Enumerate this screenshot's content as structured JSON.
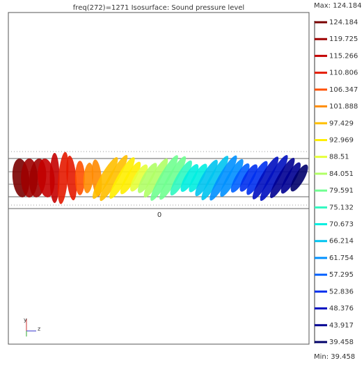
{
  "plot": {
    "title": "freq(272)=1271    Isosurface: Sound pressure level",
    "axis_tick": "0",
    "triad_y": "y",
    "triad_z": "z"
  },
  "colorbar": {
    "max_label": "Max: 124.184",
    "min_label": "Min: 39.458",
    "levels": [
      {
        "value": 124.184,
        "color": "#7a0000"
      },
      {
        "value": 119.725,
        "color": "#9e0000"
      },
      {
        "value": 115.266,
        "color": "#c40000"
      },
      {
        "value": 110.806,
        "color": "#e41a00"
      },
      {
        "value": 106.347,
        "color": "#ff5000"
      },
      {
        "value": 101.888,
        "color": "#ff8a00"
      },
      {
        "value": 97.429,
        "color": "#ffbf00"
      },
      {
        "value": 92.969,
        "color": "#ffee00"
      },
      {
        "value": 88.51,
        "color": "#e6ff3a"
      },
      {
        "value": 84.051,
        "color": "#b0ff66"
      },
      {
        "value": 79.591,
        "color": "#70ff90"
      },
      {
        "value": 75.132,
        "color": "#30f8c0"
      },
      {
        "value": 70.673,
        "color": "#00eee0"
      },
      {
        "value": 66.214,
        "color": "#00c4f0"
      },
      {
        "value": 61.754,
        "color": "#0090ff"
      },
      {
        "value": 57.295,
        "color": "#0060ff"
      },
      {
        "value": 52.836,
        "color": "#0030ee"
      },
      {
        "value": 48.376,
        "color": "#0010c0"
      },
      {
        "value": 43.917,
        "color": "#000092"
      },
      {
        "value": 39.458,
        "color": "#00006a"
      }
    ]
  }
}
